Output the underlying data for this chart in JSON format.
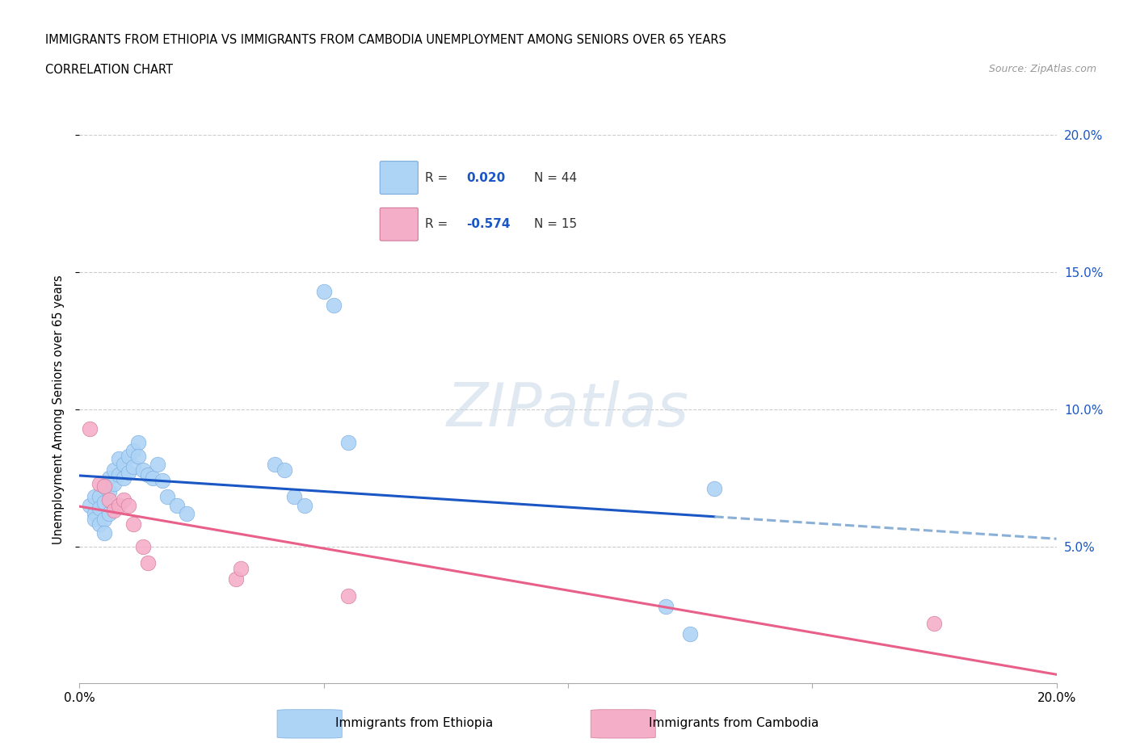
{
  "title_line1": "IMMIGRANTS FROM ETHIOPIA VS IMMIGRANTS FROM CAMBODIA UNEMPLOYMENT AMONG SENIORS OVER 65 YEARS",
  "title_line2": "CORRELATION CHART",
  "source_text": "Source: ZipAtlas.com",
  "ylabel": "Unemployment Among Seniors over 65 years",
  "xlim": [
    0.0,
    0.2
  ],
  "ylim": [
    0.0,
    0.2
  ],
  "R_ethiopia": 0.02,
  "N_ethiopia": 44,
  "R_cambodia": -0.574,
  "N_cambodia": 15,
  "ethiopia_color": "#aed4f5",
  "cambodia_color": "#f5aec8",
  "ethiopia_line_color": "#1a56c4",
  "ethiopia_line_dash_color": "#8ab0d8",
  "cambodia_line_color": "#e8608a",
  "ethiopia_x": [
    0.002,
    0.003,
    0.003,
    0.003,
    0.004,
    0.004,
    0.004,
    0.005,
    0.005,
    0.005,
    0.005,
    0.006,
    0.006,
    0.006,
    0.007,
    0.007,
    0.008,
    0.008,
    0.009,
    0.009,
    0.01,
    0.01,
    0.011,
    0.011,
    0.012,
    0.012,
    0.013,
    0.014,
    0.015,
    0.016,
    0.017,
    0.018,
    0.02,
    0.022,
    0.04,
    0.042,
    0.044,
    0.046,
    0.05,
    0.052,
    0.055,
    0.12,
    0.125,
    0.13
  ],
  "ethiopia_y": [
    0.065,
    0.068,
    0.062,
    0.06,
    0.068,
    0.064,
    0.058,
    0.072,
    0.066,
    0.06,
    0.055,
    0.075,
    0.07,
    0.062,
    0.078,
    0.073,
    0.082,
    0.076,
    0.08,
    0.075,
    0.083,
    0.077,
    0.085,
    0.079,
    0.088,
    0.083,
    0.078,
    0.076,
    0.075,
    0.08,
    0.074,
    0.068,
    0.065,
    0.062,
    0.08,
    0.078,
    0.068,
    0.065,
    0.143,
    0.138,
    0.088,
    0.028,
    0.018,
    0.071
  ],
  "cambodia_x": [
    0.002,
    0.004,
    0.005,
    0.006,
    0.007,
    0.008,
    0.009,
    0.01,
    0.011,
    0.013,
    0.014,
    0.032,
    0.033,
    0.055,
    0.175
  ],
  "cambodia_y": [
    0.093,
    0.073,
    0.072,
    0.067,
    0.063,
    0.065,
    0.067,
    0.065,
    0.058,
    0.05,
    0.044,
    0.038,
    0.042,
    0.032,
    0.022
  ]
}
